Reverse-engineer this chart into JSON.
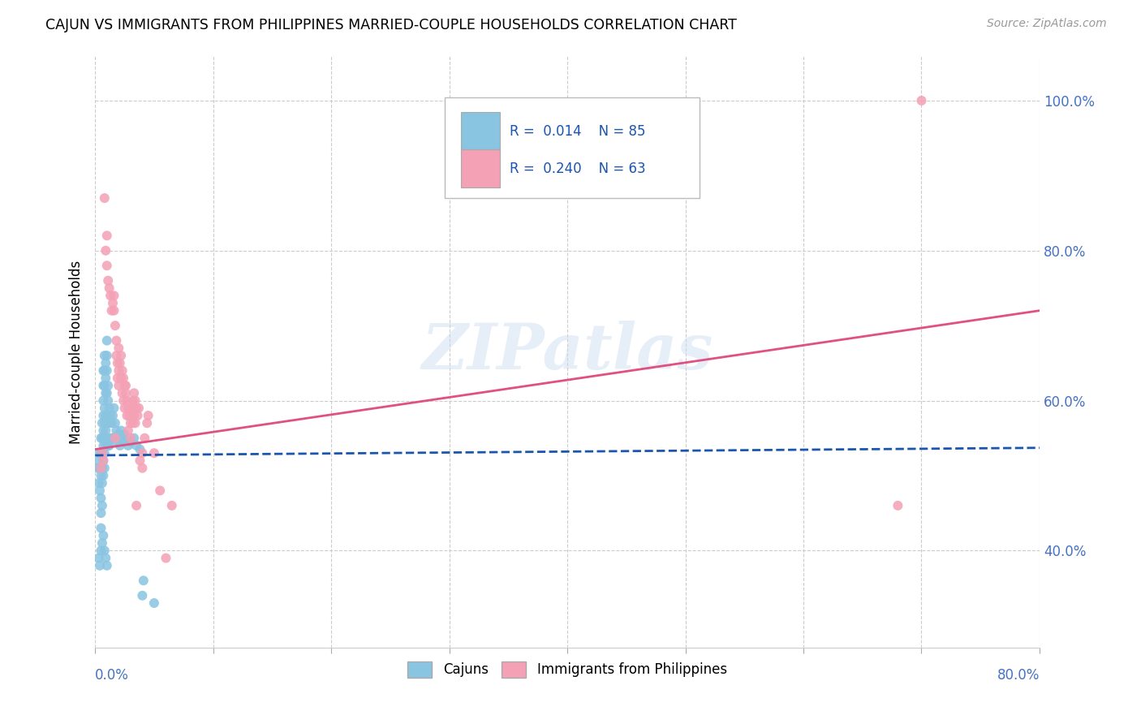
{
  "title": "CAJUN VS IMMIGRANTS FROM PHILIPPINES MARRIED-COUPLE HOUSEHOLDS CORRELATION CHART",
  "source": "Source: ZipAtlas.com",
  "ylabel": "Married-couple Households",
  "cajun_color": "#89c4e1",
  "philippines_color": "#f4a0b5",
  "trendline_cajun_color": "#1a56b0",
  "trendline_philippines_color": "#e05080",
  "watermark": "ZIPatlas",
  "background_color": "#ffffff",
  "xlim": [
    0.0,
    0.8
  ],
  "ylim": [
    0.27,
    1.06
  ],
  "xticks": [
    0.0,
    0.1,
    0.2,
    0.3,
    0.4,
    0.5,
    0.6,
    0.7,
    0.8
  ],
  "yticks": [
    0.4,
    0.6,
    0.8,
    1.0
  ],
  "ytick_labels": [
    "40.0%",
    "60.0%",
    "80.0%",
    "100.0%"
  ],
  "cajun_trendline": [
    0.0,
    0.527,
    0.8,
    0.537
  ],
  "philippines_trendline": [
    0.0,
    0.535,
    0.8,
    0.72
  ],
  "cajun_points": [
    [
      0.002,
      0.51
    ],
    [
      0.003,
      0.52
    ],
    [
      0.003,
      0.49
    ],
    [
      0.004,
      0.53
    ],
    [
      0.004,
      0.51
    ],
    [
      0.004,
      0.48
    ],
    [
      0.005,
      0.55
    ],
    [
      0.005,
      0.53
    ],
    [
      0.005,
      0.5
    ],
    [
      0.005,
      0.47
    ],
    [
      0.005,
      0.45
    ],
    [
      0.005,
      0.43
    ],
    [
      0.006,
      0.57
    ],
    [
      0.006,
      0.55
    ],
    [
      0.006,
      0.53
    ],
    [
      0.006,
      0.51
    ],
    [
      0.006,
      0.49
    ],
    [
      0.006,
      0.46
    ],
    [
      0.007,
      0.64
    ],
    [
      0.007,
      0.62
    ],
    [
      0.007,
      0.6
    ],
    [
      0.007,
      0.58
    ],
    [
      0.007,
      0.56
    ],
    [
      0.007,
      0.54
    ],
    [
      0.007,
      0.52
    ],
    [
      0.007,
      0.5
    ],
    [
      0.008,
      0.66
    ],
    [
      0.008,
      0.64
    ],
    [
      0.008,
      0.62
    ],
    [
      0.008,
      0.59
    ],
    [
      0.008,
      0.57
    ],
    [
      0.008,
      0.55
    ],
    [
      0.008,
      0.53
    ],
    [
      0.008,
      0.51
    ],
    [
      0.009,
      0.65
    ],
    [
      0.009,
      0.63
    ],
    [
      0.009,
      0.61
    ],
    [
      0.009,
      0.58
    ],
    [
      0.009,
      0.56
    ],
    [
      0.009,
      0.54
    ],
    [
      0.01,
      0.68
    ],
    [
      0.01,
      0.66
    ],
    [
      0.01,
      0.64
    ],
    [
      0.01,
      0.61
    ],
    [
      0.01,
      0.58
    ],
    [
      0.01,
      0.55
    ],
    [
      0.011,
      0.62
    ],
    [
      0.011,
      0.6
    ],
    [
      0.011,
      0.57
    ],
    [
      0.011,
      0.54
    ],
    [
      0.012,
      0.59
    ],
    [
      0.012,
      0.57
    ],
    [
      0.012,
      0.54
    ],
    [
      0.013,
      0.58
    ],
    [
      0.013,
      0.55
    ],
    [
      0.014,
      0.57
    ],
    [
      0.015,
      0.58
    ],
    [
      0.015,
      0.55
    ],
    [
      0.016,
      0.59
    ],
    [
      0.017,
      0.57
    ],
    [
      0.018,
      0.56
    ],
    [
      0.019,
      0.545
    ],
    [
      0.02,
      0.555
    ],
    [
      0.021,
      0.54
    ],
    [
      0.022,
      0.56
    ],
    [
      0.023,
      0.55
    ],
    [
      0.024,
      0.545
    ],
    [
      0.025,
      0.555
    ],
    [
      0.028,
      0.54
    ],
    [
      0.03,
      0.545
    ],
    [
      0.033,
      0.55
    ],
    [
      0.035,
      0.54
    ],
    [
      0.038,
      0.535
    ],
    [
      0.04,
      0.34
    ],
    [
      0.041,
      0.36
    ],
    [
      0.05,
      0.33
    ],
    [
      0.003,
      0.39
    ],
    [
      0.004,
      0.38
    ],
    [
      0.005,
      0.4
    ],
    [
      0.006,
      0.41
    ],
    [
      0.007,
      0.42
    ],
    [
      0.008,
      0.4
    ],
    [
      0.009,
      0.39
    ],
    [
      0.01,
      0.38
    ]
  ],
  "philippines_points": [
    [
      0.005,
      0.51
    ],
    [
      0.006,
      0.53
    ],
    [
      0.007,
      0.52
    ],
    [
      0.008,
      0.87
    ],
    [
      0.009,
      0.8
    ],
    [
      0.01,
      0.82
    ],
    [
      0.01,
      0.78
    ],
    [
      0.011,
      0.76
    ],
    [
      0.012,
      0.75
    ],
    [
      0.013,
      0.74
    ],
    [
      0.014,
      0.72
    ],
    [
      0.015,
      0.73
    ],
    [
      0.016,
      0.74
    ],
    [
      0.016,
      0.72
    ],
    [
      0.017,
      0.7
    ],
    [
      0.017,
      0.55
    ],
    [
      0.018,
      0.68
    ],
    [
      0.018,
      0.66
    ],
    [
      0.019,
      0.65
    ],
    [
      0.019,
      0.63
    ],
    [
      0.02,
      0.67
    ],
    [
      0.02,
      0.64
    ],
    [
      0.02,
      0.62
    ],
    [
      0.021,
      0.65
    ],
    [
      0.022,
      0.66
    ],
    [
      0.022,
      0.63
    ],
    [
      0.023,
      0.64
    ],
    [
      0.023,
      0.61
    ],
    [
      0.024,
      0.63
    ],
    [
      0.024,
      0.6
    ],
    [
      0.025,
      0.62
    ],
    [
      0.025,
      0.59
    ],
    [
      0.026,
      0.61
    ],
    [
      0.026,
      0.62
    ],
    [
      0.027,
      0.6
    ],
    [
      0.027,
      0.58
    ],
    [
      0.028,
      0.59
    ],
    [
      0.028,
      0.56
    ],
    [
      0.029,
      0.58
    ],
    [
      0.03,
      0.57
    ],
    [
      0.03,
      0.55
    ],
    [
      0.031,
      0.59
    ],
    [
      0.032,
      0.6
    ],
    [
      0.032,
      0.57
    ],
    [
      0.033,
      0.61
    ],
    [
      0.033,
      0.58
    ],
    [
      0.034,
      0.6
    ],
    [
      0.034,
      0.57
    ],
    [
      0.035,
      0.59
    ],
    [
      0.035,
      0.46
    ],
    [
      0.036,
      0.58
    ],
    [
      0.037,
      0.59
    ],
    [
      0.038,
      0.52
    ],
    [
      0.04,
      0.53
    ],
    [
      0.04,
      0.51
    ],
    [
      0.042,
      0.55
    ],
    [
      0.044,
      0.57
    ],
    [
      0.045,
      0.58
    ],
    [
      0.05,
      0.53
    ],
    [
      0.055,
      0.48
    ],
    [
      0.06,
      0.39
    ],
    [
      0.065,
      0.46
    ],
    [
      0.68,
      0.46
    ],
    [
      0.7,
      1.0
    ]
  ]
}
